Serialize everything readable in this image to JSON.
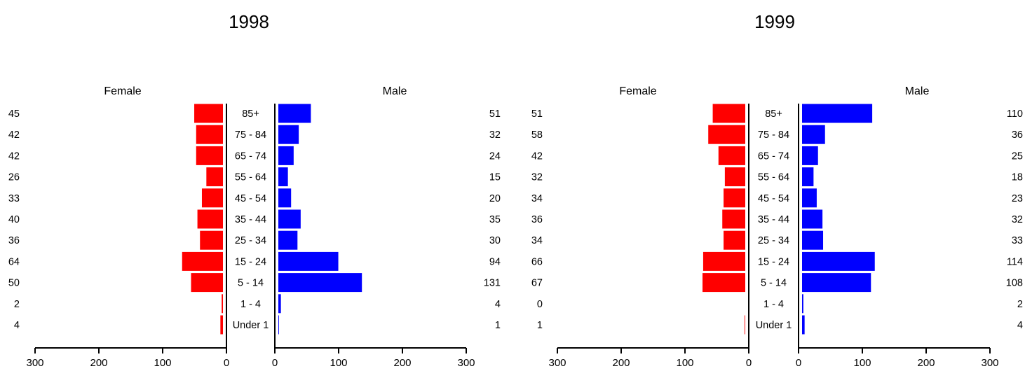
{
  "chart_data": [
    {
      "type": "bar",
      "title": "1998",
      "categories": [
        "85+",
        "75 - 84",
        "65 - 74",
        "55 - 64",
        "45 - 54",
        "35 - 44",
        "25 - 34",
        "15 - 24",
        "5 - 14",
        "1 - 4",
        "Under 1"
      ],
      "series": [
        {
          "name": "Female",
          "values": [
            45,
            42,
            42,
            26,
            33,
            40,
            36,
            64,
            50,
            2,
            4
          ],
          "color": "#ff0000"
        },
        {
          "name": "Male",
          "values": [
            51,
            32,
            24,
            15,
            20,
            35,
            30,
            94,
            131,
            4,
            1
          ],
          "color": "#0000ff"
        }
      ],
      "xlim": [
        0,
        300
      ],
      "xticks": [
        "300",
        "200",
        "100",
        "0"
      ],
      "xticks_right": [
        "0",
        "100",
        "200",
        "300"
      ]
    },
    {
      "type": "bar",
      "title": "1999",
      "categories": [
        "85+",
        "75 - 84",
        "65 - 74",
        "55 - 64",
        "45 - 54",
        "35 - 44",
        "25 - 34",
        "15 - 24",
        "5 - 14",
        "1 - 4",
        "Under 1"
      ],
      "series": [
        {
          "name": "Female",
          "values": [
            51,
            58,
            42,
            32,
            34,
            36,
            34,
            66,
            67,
            0,
            1
          ],
          "color": "#ff0000"
        },
        {
          "name": "Male",
          "values": [
            110,
            36,
            25,
            18,
            23,
            32,
            33,
            114,
            108,
            2,
            4
          ],
          "color": "#0000ff"
        }
      ],
      "xlim": [
        0,
        300
      ],
      "xticks": [
        "300",
        "200",
        "100",
        "0"
      ],
      "xticks_right": [
        "0",
        "100",
        "200",
        "300"
      ]
    }
  ]
}
